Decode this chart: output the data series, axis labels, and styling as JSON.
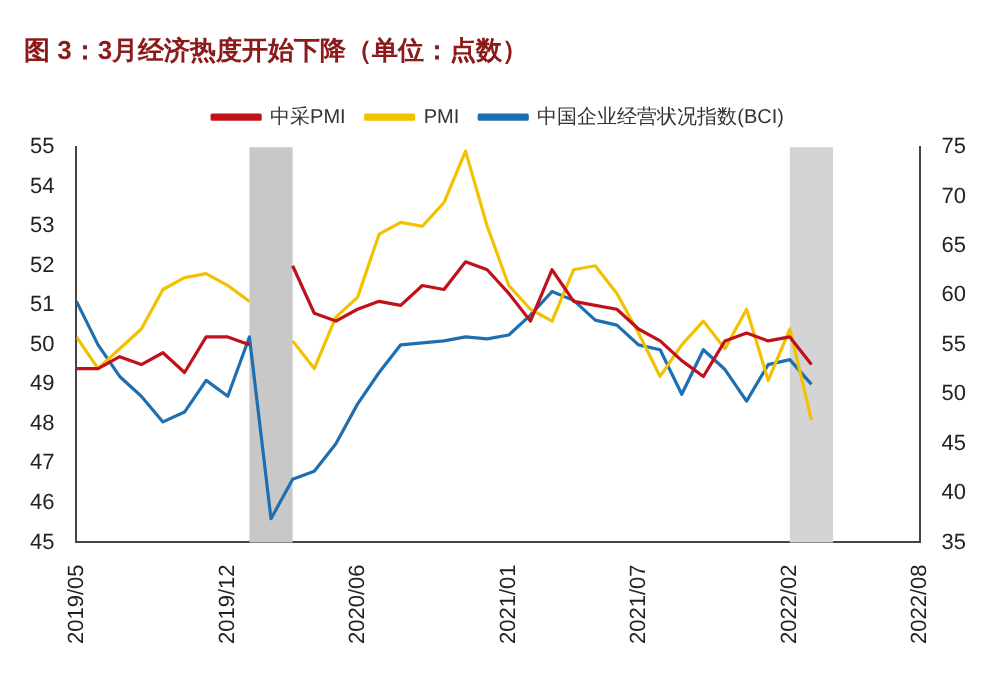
{
  "chart_data": {
    "type": "line",
    "title": "图 3：3月经济热度开始下降（单位：点数）",
    "x": [
      "2019-05",
      "2019-06",
      "2019-07",
      "2019-08",
      "2019-09",
      "2019-10",
      "2019-11",
      "2019-12",
      "2020-01",
      "2020-02",
      "2020-03",
      "2020-04",
      "2020-05",
      "2020-06",
      "2020-07",
      "2020-08",
      "2020-09",
      "2020-10",
      "2020-11",
      "2020-12",
      "2021-01",
      "2021-02",
      "2021-03",
      "2021-04",
      "2021-05",
      "2021-06",
      "2021-07",
      "2021-08",
      "2021-09",
      "2021-10",
      "2021-11",
      "2021-12",
      "2022-01",
      "2022-02",
      "2022-03"
    ],
    "series": [
      {
        "name": "中采PMI",
        "color": "#c0101a",
        "values": [
          49.4,
          49.4,
          49.7,
          49.5,
          49.8,
          49.3,
          50.2,
          50.2,
          50.0,
          null,
          52.0,
          50.8,
          50.6,
          50.9,
          51.1,
          51.0,
          51.5,
          51.4,
          52.1,
          51.9,
          51.3,
          50.6,
          51.9,
          51.1,
          51.0,
          50.9,
          50.4,
          50.1,
          49.6,
          49.2,
          50.1,
          50.3,
          50.1,
          50.2,
          49.5
        ]
      },
      {
        "name": "PMI",
        "color": "#f2c200",
        "values": [
          50.2,
          49.4,
          49.9,
          50.4,
          51.4,
          51.7,
          51.8,
          51.5,
          51.1,
          null,
          50.1,
          49.4,
          50.7,
          51.2,
          52.8,
          53.1,
          53.0,
          53.6,
          54.9,
          53.0,
          51.5,
          50.9,
          50.6,
          51.9,
          52.0,
          51.3,
          50.3,
          49.2,
          50.0,
          50.6,
          49.9,
          50.9,
          49.1,
          50.4,
          48.1
        ]
      },
      {
        "name": "中国企业经营状况指数(BCI)",
        "color": "#1f6fb0",
        "axis": "y2",
        "values": [
          59.4,
          55.0,
          51.8,
          49.8,
          47.2,
          48.2,
          51.4,
          49.8,
          55.8,
          37.4,
          41.4,
          42.2,
          45.0,
          49.0,
          52.2,
          55.0,
          55.2,
          55.4,
          55.8,
          55.6,
          56.0,
          58.0,
          60.4,
          59.5,
          57.5,
          57.0,
          55.0,
          54.5,
          50.0,
          54.5,
          52.5,
          49.3,
          53.0,
          53.5,
          51.0
        ]
      }
    ],
    "xlim": [
      "2019-05",
      "2022-08"
    ],
    "xticks": [
      {
        "value": "2019-05",
        "label": "2019/05"
      },
      {
        "value": "2019-12",
        "label": "2019/12"
      },
      {
        "value": "2020-06",
        "label": "2020/06"
      },
      {
        "value": "2021-01",
        "label": "2021/01"
      },
      {
        "value": "2021-07",
        "label": "2021/07"
      },
      {
        "value": "2022-02",
        "label": "2022/02"
      },
      {
        "value": "2022-08",
        "label": "2022/08"
      }
    ],
    "ylim": [
      45,
      55
    ],
    "yticks": [
      45,
      46,
      47,
      48,
      49,
      50,
      51,
      52,
      53,
      54,
      55
    ],
    "y2lim": [
      35,
      75
    ],
    "y2ticks": [
      35,
      40,
      45,
      50,
      55,
      60,
      65,
      70,
      75
    ],
    "bands": [
      {
        "axis": "x",
        "from": "2020-01",
        "to": "2020-03",
        "color": "#c8c8c8"
      },
      {
        "axis": "x",
        "from": "2022-02",
        "to": "2022-04",
        "color": "#d4d4d4"
      }
    ],
    "grid": false,
    "legend": "top",
    "marker": "none",
    "line_style": "solid"
  }
}
